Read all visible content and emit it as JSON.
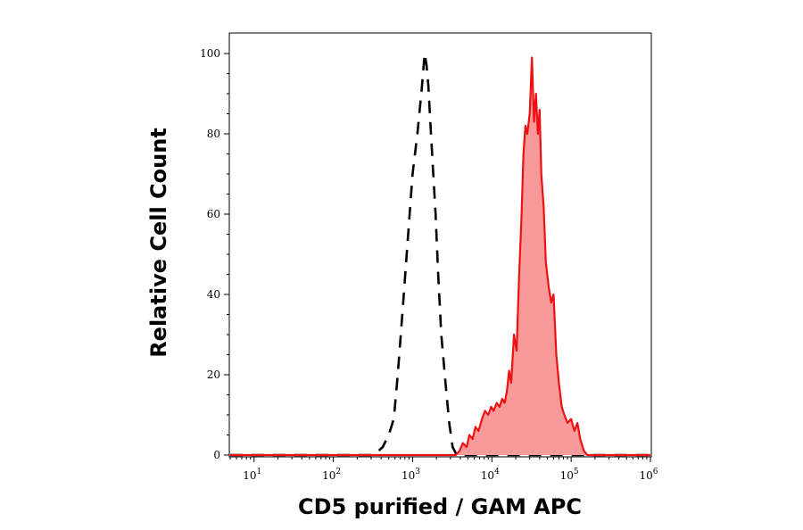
{
  "chart_data": {
    "type": "area",
    "xlabel": "CD5 purified / GAM APC",
    "ylabel": "Relative Cell Count",
    "x_scale": "log",
    "xlim": [
      5,
      1000000
    ],
    "ylim": [
      0,
      105
    ],
    "x_ticks": [
      {
        "value": 10,
        "base": "10",
        "exp": "1"
      },
      {
        "value": 100,
        "base": "10",
        "exp": "2"
      },
      {
        "value": 1000,
        "base": "10",
        "exp": "3"
      },
      {
        "value": 10000,
        "base": "10",
        "exp": "4"
      },
      {
        "value": 100000,
        "base": "10",
        "exp": "5"
      },
      {
        "value": 1000000,
        "base": "10",
        "exp": "6"
      }
    ],
    "y_ticks": [
      {
        "value": 0,
        "label": "0"
      },
      {
        "value": 20,
        "label": "20"
      },
      {
        "value": 40,
        "label": "40"
      },
      {
        "value": 60,
        "label": "60"
      },
      {
        "value": 80,
        "label": "80"
      },
      {
        "value": 100,
        "label": "100"
      }
    ],
    "grid": false,
    "series": [
      {
        "style": "dashed-outline",
        "color": "#000000",
        "x": [
          5,
          300,
          370,
          420,
          500,
          580,
          650,
          760,
          880,
          1000,
          1150,
          1300,
          1420,
          1500,
          1580,
          1650,
          1800,
          1950,
          2100,
          2300,
          2600,
          2900,
          3200,
          3600,
          1000000
        ],
        "y": [
          0,
          0,
          1,
          2,
          5,
          9,
          20,
          38,
          55,
          70,
          80,
          91,
          100,
          97,
          92,
          85,
          72,
          60,
          45,
          30,
          18,
          8,
          2,
          0,
          0
        ]
      },
      {
        "style": "filled",
        "color": "#ee1111",
        "fill": "#f99a9a",
        "x": [
          5,
          3500,
          3900,
          4300,
          4800,
          5200,
          5700,
          6200,
          6800,
          7500,
          8200,
          9000,
          9800,
          10500,
          11500,
          12500,
          13500,
          14500,
          15500,
          16500,
          17500,
          19000,
          20500,
          22000,
          23500,
          25000,
          26500,
          28000,
          30000,
          32000,
          34000,
          36000,
          38000,
          40000,
          42000,
          45000,
          48000,
          52000,
          56000,
          60000,
          65000,
          70000,
          76000,
          82000,
          90000,
          100000,
          110000,
          120000,
          130000,
          145000,
          160000,
          1000000
        ],
        "y": [
          0,
          0,
          1,
          3,
          2,
          5,
          4,
          7,
          6,
          9,
          11,
          10,
          12,
          11,
          13,
          12,
          14,
          13,
          16,
          21,
          18,
          30,
          26,
          44,
          58,
          75,
          82,
          80,
          85,
          99,
          83,
          90,
          80,
          86,
          70,
          62,
          48,
          42,
          38,
          40,
          25,
          18,
          12,
          10,
          8,
          9,
          6,
          8,
          4,
          1,
          0,
          0
        ]
      }
    ]
  }
}
